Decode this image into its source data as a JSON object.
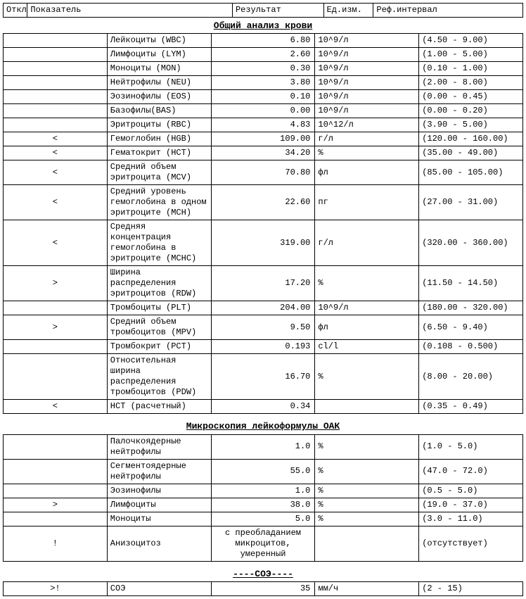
{
  "header": {
    "flag": "Откл",
    "name": "Показатель",
    "result": "Результат",
    "unit": "Ед.изм.",
    "interval": "Реф.интервал"
  },
  "sections": [
    {
      "title": "Общий анализ крови",
      "rows": [
        {
          "flag": "",
          "name": "Лейкоциты (WBC)",
          "result": "6.80",
          "unit": "10^9/л",
          "interval": "(4.50 - 9.00)"
        },
        {
          "flag": "",
          "name": "Лимфоциты (LYM)",
          "result": "2.60",
          "unit": "10^9/л",
          "interval": "(1.00 - 5.00)"
        },
        {
          "flag": "",
          "name": "Моноциты (MON)",
          "result": "0.30",
          "unit": "10^9/л",
          "interval": "(0.10 - 1.00)"
        },
        {
          "flag": "",
          "name": "Нейтрофилы (NEU)",
          "result": "3.80",
          "unit": "10^9/л",
          "interval": "(2.00 - 8.00)"
        },
        {
          "flag": "",
          "name": "Эозинофилы (EOS)",
          "result": "0.10",
          "unit": "10^9/л",
          "interval": "(0.00 - 0.45)"
        },
        {
          "flag": "",
          "name": "Базофилы(BAS)",
          "result": "0.00",
          "unit": "10^9/л",
          "interval": "(0.00 - 0.20)"
        },
        {
          "flag": "",
          "name": "Эритроциты (RBC)",
          "result": "4.83",
          "unit": "10^12/л",
          "interval": "(3.90 - 5.00)"
        },
        {
          "flag": "<",
          "name": "Гемоглобин (HGB)",
          "result": "109.00",
          "unit": "г/л",
          "interval": "(120.00 - 160.00)"
        },
        {
          "flag": "<",
          "name": "Гематокрит (HCT)",
          "result": "34.20",
          "unit": "%",
          "interval": "(35.00 - 49.00)"
        },
        {
          "flag": "<",
          "name": "Средний объем эритроцита (MCV)",
          "result": "70.80",
          "unit": "фл",
          "interval": "(85.00 - 105.00)"
        },
        {
          "flag": "<",
          "name": "Средний уровень гемоглобина в одном эритроците (MCH)",
          "result": "22.60",
          "unit": "пг",
          "interval": "(27.00 - 31.00)"
        },
        {
          "flag": "<",
          "name": "Средняя концентрация гемоглобина в эритроците (MCHC)",
          "result": "319.00",
          "unit": "г/л",
          "interval": "(320.00 - 360.00)"
        },
        {
          "flag": ">",
          "name": "Ширина распределения эритроцитов (RDW)",
          "result": "17.20",
          "unit": "%",
          "interval": "(11.50 - 14.50)"
        },
        {
          "flag": "",
          "name": "Тромбоциты (PLT)",
          "result": "204.00",
          "unit": "10^9/л",
          "interval": "(180.00 - 320.00)"
        },
        {
          "flag": ">",
          "name": "Средний объем тромбоцитов (MPV)",
          "result": "9.50",
          "unit": "фл",
          "interval": "(6.50 - 9.40)"
        },
        {
          "flag": "",
          "name": "Тромбокрит (PCT)",
          "result": "0.193",
          "unit": "cl/l",
          "interval": "(0.108 - 0.500)"
        },
        {
          "flag": "",
          "name": "Относительная ширина распределения тромбоцитов (PDW)",
          "result": "16.70",
          "unit": "%",
          "interval": "(8.00 - 20.00)"
        },
        {
          "flag": "<",
          "name": "HCT (расчетный)",
          "result": "0.34",
          "unit": "",
          "interval": "(0.35 - 0.49)"
        }
      ]
    },
    {
      "title": "Микроскопия лейкоформулы ОАК",
      "rows": [
        {
          "flag": "",
          "name": "Палочкоядерные нейтрофилы",
          "result": "1.0",
          "unit": "%",
          "interval": "(1.0 - 5.0)"
        },
        {
          "flag": "",
          "name": "Сегментоядерные нейтрофилы",
          "result": "55.0",
          "unit": "%",
          "interval": "(47.0 - 72.0)"
        },
        {
          "flag": "",
          "name": "Эозинофилы",
          "result": "1.0",
          "unit": "%",
          "interval": "(0.5 - 5.0)"
        },
        {
          "flag": ">",
          "name": "Лимфоциты",
          "result": "38.0",
          "unit": "%",
          "interval": "(19.0 - 37.0)"
        },
        {
          "flag": "",
          "name": "Моноциты",
          "result": "5.0",
          "unit": "%",
          "interval": "(3.0 - 11.0)"
        },
        {
          "flag": "!",
          "name": "Анизоцитоз",
          "result": "с преобладанием микроцитов, умеренный",
          "unit": "",
          "interval": "(отсутствует)",
          "result_centered": true
        }
      ]
    },
    {
      "title": "----СОЭ----",
      "rows": [
        {
          "flag": ">!",
          "name": "СОЭ",
          "result": "35",
          "unit": "мм/ч",
          "interval": "(2 - 15)"
        }
      ]
    }
  ]
}
